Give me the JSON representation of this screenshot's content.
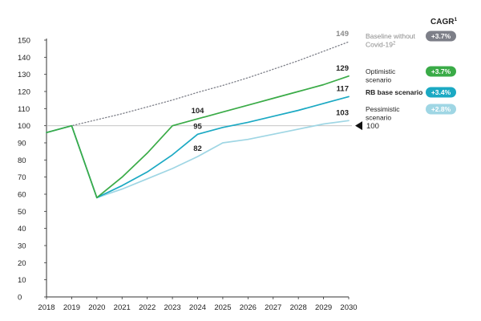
{
  "chart_data": {
    "type": "line",
    "title": "",
    "xlabel": "",
    "ylabel": "",
    "x": [
      2018,
      2019,
      2020,
      2021,
      2022,
      2023,
      2024,
      2025,
      2026,
      2027,
      2028,
      2029,
      2030
    ],
    "x_tick_labels": [
      "2018",
      "2019",
      "2020",
      "2021",
      "2022",
      "2023",
      "2024",
      "2025",
      "2026",
      "2027",
      "2028",
      "2029",
      "2030"
    ],
    "ylim": [
      0,
      150
    ],
    "y_ticks": [
      0,
      10,
      20,
      30,
      40,
      50,
      60,
      70,
      80,
      90,
      100,
      110,
      120,
      130,
      140,
      150
    ],
    "reference_line": {
      "value": 100,
      "label": "100"
    },
    "cagr_header": "CAGR",
    "cagr_header_sup": "1",
    "series": [
      {
        "key": "baseline",
        "name_lines": [
          "Baseline without",
          "Covid-19"
        ],
        "name_sup": "2",
        "color": "#7d7f88",
        "style": "dotted",
        "end_label": "149",
        "cagr": "+3.7%",
        "x": [
          2018,
          2019,
          2020,
          2021,
          2022,
          2023,
          2024,
          2025,
          2026,
          2027,
          2028,
          2029,
          2030
        ],
        "values": [
          96,
          100,
          103.5,
          107,
          111,
          115,
          119.5,
          123.5,
          128,
          133,
          138,
          143.5,
          149
        ]
      },
      {
        "key": "optimistic",
        "name_lines": [
          "Optimistic",
          "scenario"
        ],
        "color": "#3aab47",
        "style": "solid",
        "end_label": "129",
        "cagr": "+3.7%",
        "annotation": {
          "x": 2024,
          "label": "104"
        },
        "x": [
          2018,
          2019,
          2020,
          2021,
          2022,
          2023,
          2024,
          2025,
          2026,
          2027,
          2028,
          2029,
          2030
        ],
        "values": [
          96,
          100,
          58,
          70,
          84,
          100,
          104,
          108,
          112,
          116,
          120,
          124,
          129
        ]
      },
      {
        "key": "rb_base",
        "name_lines": [
          "RB base scenario"
        ],
        "color": "#1ba9c3",
        "style": "solid",
        "bold_name": true,
        "end_label": "117",
        "cagr": "+3.4%",
        "annotation": {
          "x": 2024,
          "label": "95"
        },
        "x": [
          2018,
          2019,
          2020,
          2021,
          2022,
          2023,
          2024,
          2025,
          2026,
          2027,
          2028,
          2029,
          2030
        ],
        "values": [
          96,
          100,
          58,
          65,
          73,
          83,
          95,
          99,
          102,
          105.5,
          109,
          113,
          117
        ]
      },
      {
        "key": "pessimistic",
        "name_lines": [
          "Pessimistic",
          "scenario"
        ],
        "color": "#9fd6e4",
        "style": "solid",
        "end_label": "103",
        "cagr": "+2.8%",
        "annotation": {
          "x": 2024,
          "label": "82"
        },
        "x": [
          2020,
          2021,
          2022,
          2023,
          2024,
          2025,
          2026,
          2027,
          2028,
          2029,
          2030
        ],
        "values": [
          58,
          63,
          69,
          75,
          82,
          90,
          92,
          95,
          98,
          101,
          103
        ]
      }
    ]
  }
}
